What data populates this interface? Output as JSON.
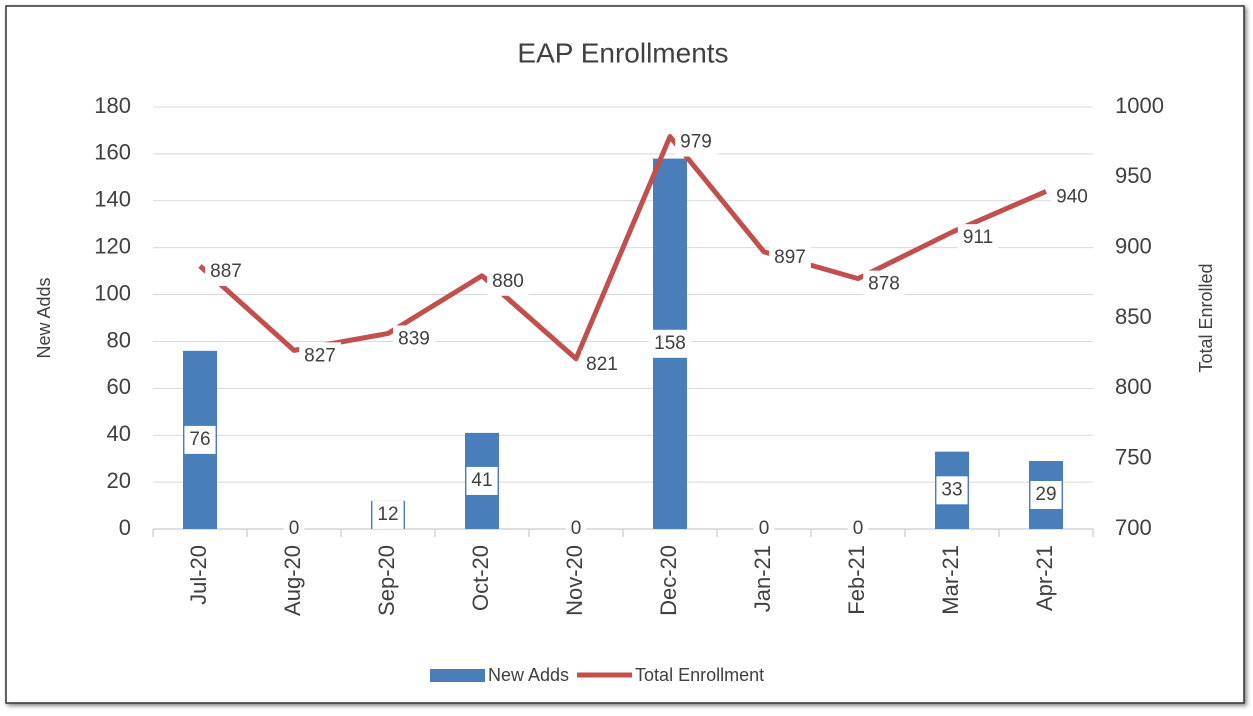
{
  "chart_data": {
    "type": "combo",
    "title": "EAP Enrollments",
    "categories": [
      "Jul-20",
      "Aug-20",
      "Sep-20",
      "Oct-20",
      "Nov-20",
      "Dec-20",
      "Jan-21",
      "Feb-21",
      "Mar-21",
      "Apr-21"
    ],
    "series": [
      {
        "name": "New Adds",
        "type": "bar",
        "color": "#4a7ebb",
        "values": [
          76,
          0,
          12,
          41,
          0,
          158,
          0,
          0,
          33,
          29
        ]
      },
      {
        "name": "Total Enrollment",
        "type": "line",
        "axis": "y2",
        "color": "#c0504d",
        "values": [
          887,
          827,
          839,
          880,
          821,
          979,
          897,
          878,
          911,
          940
        ]
      }
    ],
    "ylabel": "New Adds",
    "y2label": "Total Enrolled",
    "ylim": [
      0,
      180
    ],
    "yticks": [
      0,
      20,
      40,
      60,
      80,
      100,
      120,
      140,
      160,
      180
    ],
    "y2lim": [
      700,
      1000
    ],
    "y2ticks": [
      700,
      750,
      800,
      850,
      900,
      950,
      1000
    ],
    "grid": true,
    "legend": "bottom"
  }
}
